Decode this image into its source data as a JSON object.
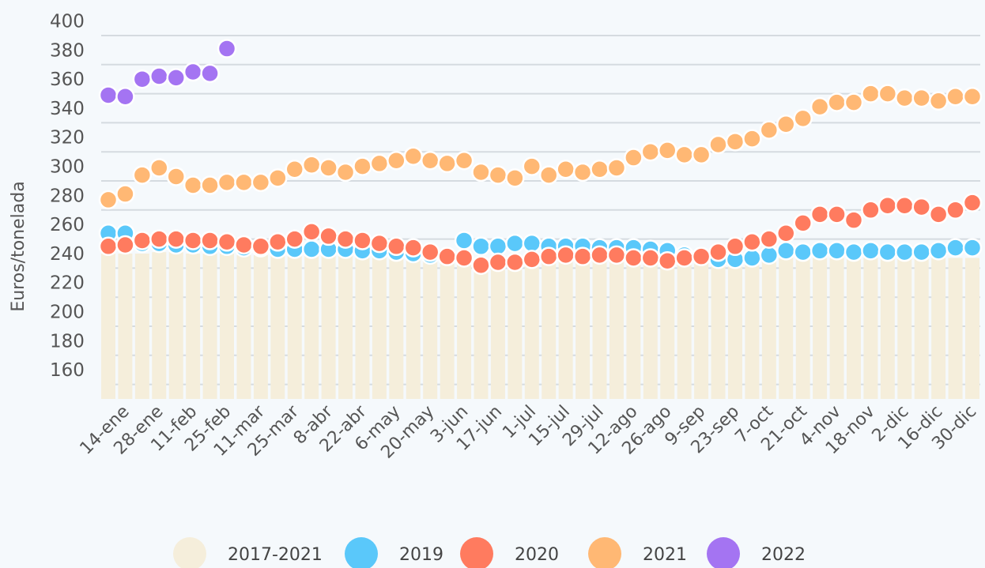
{
  "chart_data": {
    "type": "combo",
    "y_label": "Euros/tonelada",
    "categories": [
      null,
      "14-ene",
      null,
      "28-ene",
      null,
      "11-feb",
      null,
      "25-feb",
      null,
      "11-mar",
      null,
      "25-mar",
      null,
      "8-abr",
      null,
      "22-abr",
      null,
      "6-may",
      null,
      "20-may",
      null,
      "3-jun",
      null,
      "17-jun",
      null,
      "1-jul",
      null,
      "15-jul",
      null,
      "29-jul",
      null,
      "12-ago",
      null,
      "26-ago",
      null,
      "9-sep",
      null,
      "23-sep",
      null,
      "7-oct",
      null,
      "21-oct",
      null,
      "4-nov",
      null,
      "18-nov",
      null,
      "2-dic",
      null,
      "16-dic",
      null,
      "30-dic"
    ],
    "ylim": [
      150,
      400
    ],
    "yticks": [
      160,
      180,
      200,
      220,
      240,
      260,
      280,
      300,
      320,
      340,
      360,
      380,
      400
    ],
    "grid": true,
    "series": [
      {
        "name": "2017-2021",
        "type": "bar",
        "color": "#f5eedb",
        "values": [
          250,
          250,
          250,
          251,
          251,
          250,
          250,
          250,
          249,
          249,
          249,
          249,
          250,
          249,
          249,
          249,
          248,
          248,
          248,
          247,
          247,
          246,
          246,
          246,
          246,
          246,
          246,
          246,
          246,
          246,
          246,
          246,
          246,
          246,
          246,
          246,
          246,
          246,
          246,
          247,
          247,
          247,
          247,
          247,
          247,
          247,
          247,
          247,
          247,
          247,
          247,
          247
        ]
      },
      {
        "name": "2019",
        "type": "scatter",
        "color": "#5ac8fa",
        "values": [
          264,
          264,
          257,
          257,
          256,
          256,
          255,
          255,
          254,
          254,
          253,
          253,
          253,
          253,
          253,
          252,
          252,
          251,
          250,
          249,
          248,
          259,
          255,
          255,
          257,
          257,
          255,
          255,
          255,
          254,
          254,
          254,
          253,
          252,
          249,
          248,
          246,
          246,
          247,
          249,
          252,
          251,
          252,
          252,
          251,
          252,
          251,
          251,
          251,
          252,
          254,
          254
        ]
      },
      {
        "name": "2020",
        "type": "scatter",
        "color": "#ff7b5f",
        "values": [
          255,
          256,
          259,
          260,
          260,
          259,
          259,
          258,
          256,
          255,
          258,
          260,
          265,
          262,
          260,
          259,
          257,
          255,
          254,
          251,
          248,
          247,
          242,
          244,
          244,
          246,
          248,
          249,
          248,
          249,
          249,
          247,
          247,
          245,
          247,
          248,
          251,
          255,
          258,
          260,
          264,
          271,
          277,
          277,
          273,
          280,
          283,
          283,
          282,
          277,
          280,
          285
        ]
      },
      {
        "name": "2021",
        "type": "scatter",
        "color": "#ffb874",
        "values": [
          287,
          291,
          304,
          309,
          303,
          297,
          297,
          299,
          299,
          299,
          302,
          308,
          311,
          309,
          306,
          310,
          312,
          314,
          317,
          314,
          312,
          314,
          306,
          304,
          302,
          310,
          304,
          308,
          306,
          308,
          309,
          316,
          320,
          321,
          318,
          318,
          325,
          327,
          329,
          335,
          339,
          343,
          351,
          354,
          354,
          360,
          360,
          357,
          357,
          355,
          358,
          358
        ]
      },
      {
        "name": "2022",
        "type": "scatter",
        "color": "#a474f2",
        "values": [
          359,
          358,
          370,
          372,
          371,
          375,
          374,
          391,
          null,
          null,
          null,
          null,
          null,
          null,
          null,
          null,
          null,
          null,
          null,
          null,
          null,
          null,
          null,
          null,
          null,
          null,
          null,
          null,
          null,
          null,
          null,
          null,
          null,
          null,
          null,
          null,
          null,
          null,
          null,
          null,
          null,
          null,
          null,
          null,
          null,
          null,
          null,
          null,
          null,
          null,
          null,
          null
        ]
      }
    ]
  }
}
